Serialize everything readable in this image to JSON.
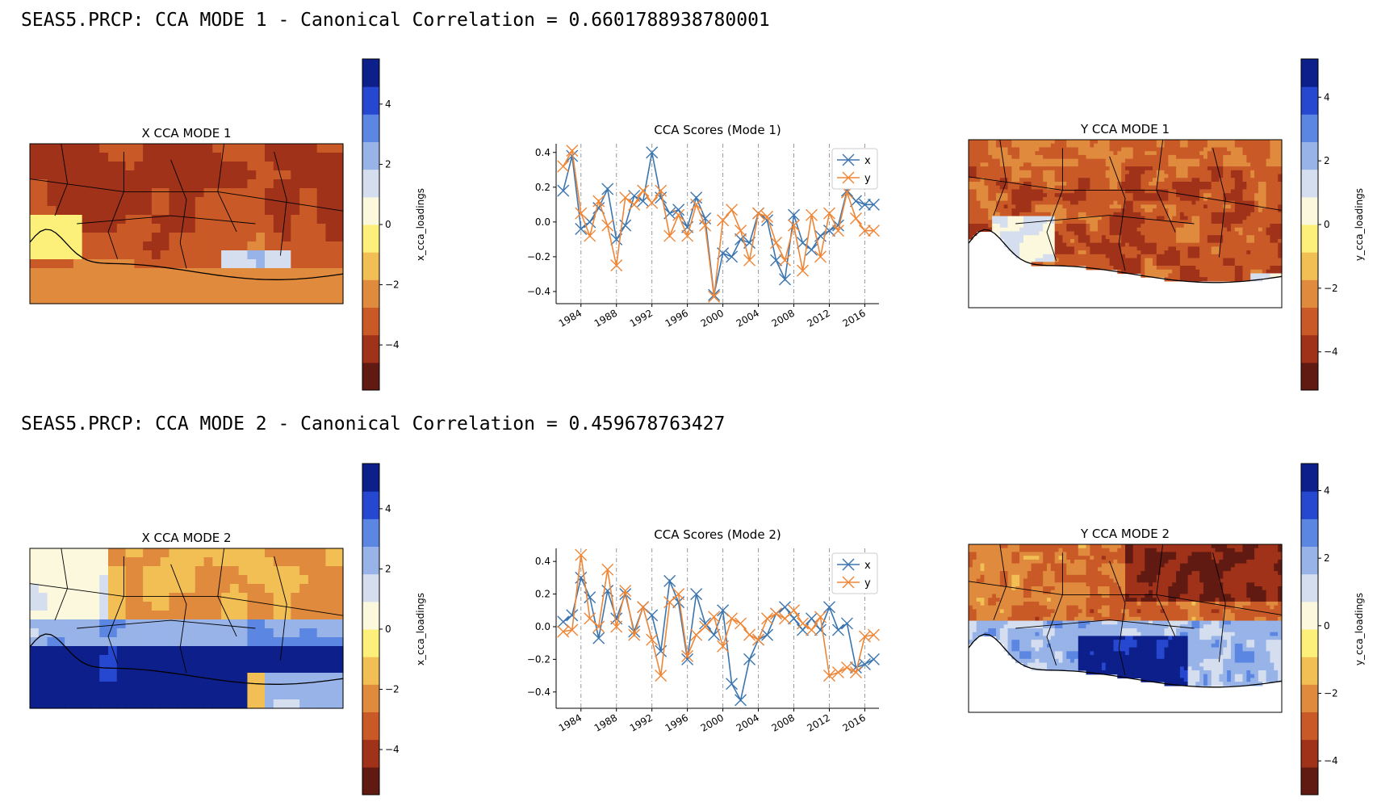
{
  "modes": [
    {
      "title": "SEAS5.PRCP: CCA MODE 1 - Canonical Correlation = 0.6601788938780001"
    },
    {
      "title": "SEAS5.PRCP: CCA MODE 2 - Canonical Correlation = 0.459678763427"
    }
  ],
  "colors": {
    "x_series": "#3b75af",
    "y_series": "#ef8636",
    "colormap": [
      "#611a12",
      "#a1321a",
      "#c95a27",
      "#e08a3e",
      "#f2bf55",
      "#fdf07a",
      "#fbf8dd",
      "#d4deef",
      "#97b3e8",
      "#5b86e2",
      "#2647cf",
      "#0c1f8a"
    ]
  },
  "chart_data": [
    {
      "type": "heatmap",
      "title": "X CCA MODE 1",
      "colorbar_label": "x_cca_loadings",
      "colorbar_range": [
        -5.5,
        5.5
      ],
      "colorbar_ticks": [
        "4",
        "2",
        "0",
        "−2",
        "−4"
      ],
      "colorbar_tick_values": [
        4,
        2,
        0,
        -2,
        -4
      ],
      "pattern": "strong negative loadings across Sahel, positive near Gulf of Guinea coast"
    },
    {
      "type": "line",
      "title": "CCA Scores (Mode 1)",
      "x": [
        1982,
        1983,
        1984,
        1985,
        1986,
        1987,
        1988,
        1989,
        1990,
        1991,
        1992,
        1993,
        1994,
        1995,
        1996,
        1997,
        1998,
        1999,
        2000,
        2001,
        2002,
        2003,
        2004,
        2005,
        2006,
        2007,
        2008,
        2009,
        2010,
        2011,
        2012,
        2013,
        2014,
        2015,
        2016,
        2017
      ],
      "xticks": [
        "1984",
        "1988",
        "1992",
        "1996",
        "2000",
        "2004",
        "2008",
        "2012",
        "2016"
      ],
      "yticks": [
        "0.4",
        "0.2",
        "0.0",
        "−0.2",
        "−0.4"
      ],
      "ytick_values": [
        0.4,
        0.2,
        0.0,
        -0.2,
        -0.4
      ],
      "ylim": [
        -0.47,
        0.45
      ],
      "series": [
        {
          "name": "x",
          "values": [
            0.18,
            0.38,
            -0.04,
            0.0,
            0.08,
            0.19,
            -0.1,
            -0.02,
            0.15,
            0.12,
            0.4,
            0.14,
            0.05,
            0.07,
            -0.03,
            0.14,
            0.02,
            -0.42,
            -0.18,
            -0.2,
            -0.1,
            -0.12,
            0.05,
            0.01,
            -0.22,
            -0.33,
            0.04,
            -0.12,
            -0.16,
            -0.08,
            -0.05,
            -0.02,
            0.18,
            0.12,
            0.1,
            0.1
          ]
        },
        {
          "name": "y",
          "values": [
            0.32,
            0.41,
            0.05,
            -0.08,
            0.12,
            -0.02,
            -0.25,
            0.14,
            0.1,
            0.18,
            0.11,
            0.18,
            -0.08,
            0.04,
            -0.08,
            0.1,
            -0.02,
            -0.43,
            0.01,
            0.07,
            -0.05,
            -0.22,
            0.05,
            0.03,
            -0.12,
            -0.22,
            -0.02,
            -0.28,
            0.04,
            -0.2,
            0.05,
            -0.05,
            0.17,
            0.02,
            -0.05,
            -0.05
          ]
        }
      ]
    },
    {
      "type": "heatmap",
      "title": "Y CCA MODE 1",
      "colorbar_label": "y_cca_loadings",
      "colorbar_range": [
        -5.2,
        5.2
      ],
      "colorbar_ticks": [
        "4",
        "2",
        "0",
        "−2",
        "−4"
      ],
      "colorbar_tick_values": [
        4,
        2,
        0,
        -2,
        -4
      ],
      "pattern": "widespread negative loadings, weakly positive along southern coast"
    },
    {
      "type": "heatmap",
      "title": "X CCA MODE 2",
      "colorbar_label": "x_cca_loadings",
      "colorbar_range": [
        -5.5,
        5.5
      ],
      "colorbar_ticks": [
        "4",
        "2",
        "0",
        "−2",
        "−4"
      ],
      "colorbar_tick_values": [
        4,
        2,
        0,
        -2,
        -4
      ],
      "pattern": "negative loadings in north, strong positive over Gulf of Guinea"
    },
    {
      "type": "line",
      "title": "CCA Scores (Mode 2)",
      "x": [
        1982,
        1983,
        1984,
        1985,
        1986,
        1987,
        1988,
        1989,
        1990,
        1991,
        1992,
        1993,
        1994,
        1995,
        1996,
        1997,
        1998,
        1999,
        2000,
        2001,
        2002,
        2003,
        2004,
        2005,
        2006,
        2007,
        2008,
        2009,
        2010,
        2011,
        2012,
        2013,
        2014,
        2015,
        2016,
        2017
      ],
      "xticks": [
        "1984",
        "1988",
        "1992",
        "1996",
        "2000",
        "2004",
        "2008",
        "2012",
        "2016"
      ],
      "yticks": [
        "0.4",
        "0.2",
        "0.0",
        "−0.2",
        "−0.4"
      ],
      "ytick_values": [
        0.4,
        0.2,
        0.0,
        -0.2,
        -0.4
      ],
      "ylim": [
        -0.5,
        0.48
      ],
      "series": [
        {
          "name": "x",
          "values": [
            0.03,
            0.07,
            0.3,
            0.18,
            -0.07,
            0.22,
            0.05,
            0.2,
            -0.03,
            0.12,
            0.07,
            -0.15,
            0.28,
            0.15,
            -0.2,
            0.2,
            0.02,
            -0.05,
            0.1,
            -0.35,
            -0.45,
            -0.2,
            -0.08,
            -0.05,
            0.08,
            0.12,
            0.05,
            -0.02,
            0.05,
            -0.02,
            0.12,
            -0.02,
            0.02,
            -0.25,
            -0.23,
            -0.2
          ]
        },
        {
          "name": "y",
          "values": [
            -0.03,
            -0.02,
            0.44,
            0.05,
            0.0,
            0.35,
            0.0,
            0.22,
            -0.05,
            0.12,
            -0.08,
            -0.3,
            0.15,
            0.2,
            -0.18,
            -0.05,
            0.0,
            0.06,
            -0.12,
            0.05,
            0.02,
            -0.05,
            -0.08,
            0.05,
            0.08,
            0.05,
            0.1,
            0.02,
            -0.02,
            0.06,
            -0.3,
            -0.28,
            -0.25,
            -0.28,
            -0.06,
            -0.05
          ]
        }
      ]
    },
    {
      "type": "heatmap",
      "title": "Y CCA MODE 2",
      "colorbar_label": "y_cca_loadings",
      "colorbar_range": [
        -5.0,
        4.8
      ],
      "colorbar_ticks": [
        "4",
        "2",
        "0",
        "−2",
        "−4"
      ],
      "colorbar_tick_values": [
        4,
        2,
        0,
        -2,
        -4
      ],
      "pattern": "negative loadings in north, strong positive in southern coastal band"
    }
  ]
}
